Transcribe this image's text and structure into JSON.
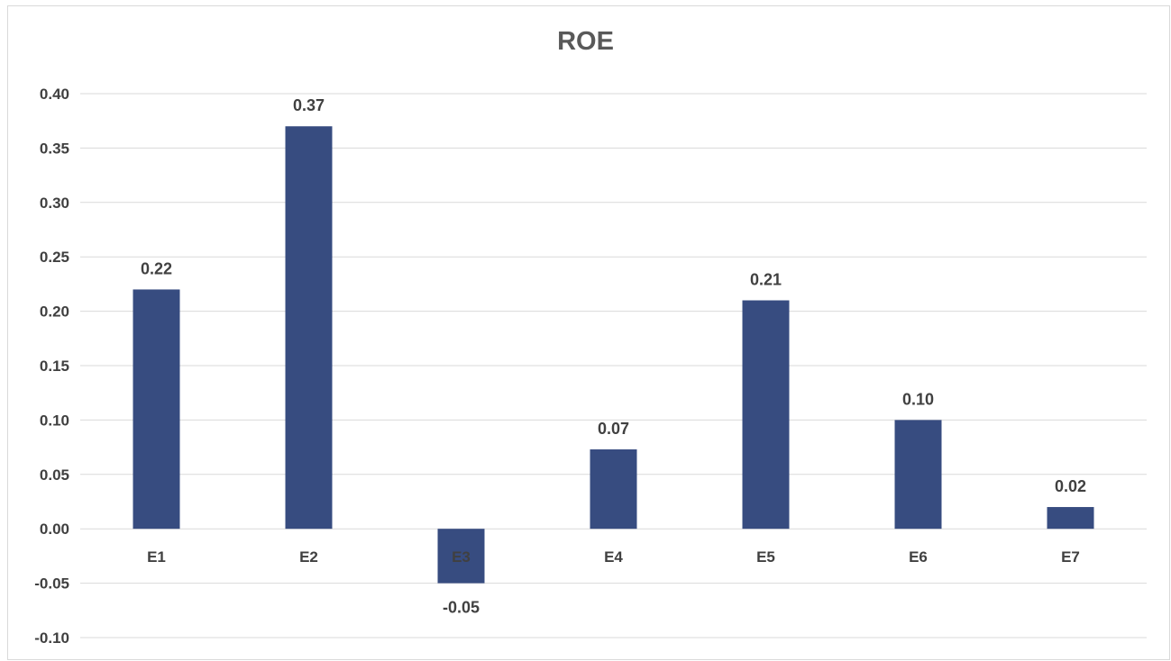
{
  "chart_data": {
    "type": "bar",
    "title": "ROE",
    "xlabel": "",
    "ylabel": "",
    "categories": [
      "E1",
      "E2",
      "E3",
      "E4",
      "E5",
      "E6",
      "E7"
    ],
    "values": [
      0.22,
      0.37,
      -0.05,
      0.073,
      0.21,
      0.1,
      0.02
    ],
    "data_labels": [
      "0.22",
      "0.37",
      "-0.05",
      "0.07",
      "0.21",
      "0.10",
      "0.02"
    ],
    "y_ticks": [
      "0.40",
      "0.35",
      "0.30",
      "0.25",
      "0.20",
      "0.15",
      "0.10",
      "0.05",
      "0.00",
      "-0.05",
      "-0.10"
    ],
    "ylim": [
      -0.1,
      0.4
    ],
    "grid": true,
    "legend": "none",
    "bar_color": "#374c80"
  }
}
